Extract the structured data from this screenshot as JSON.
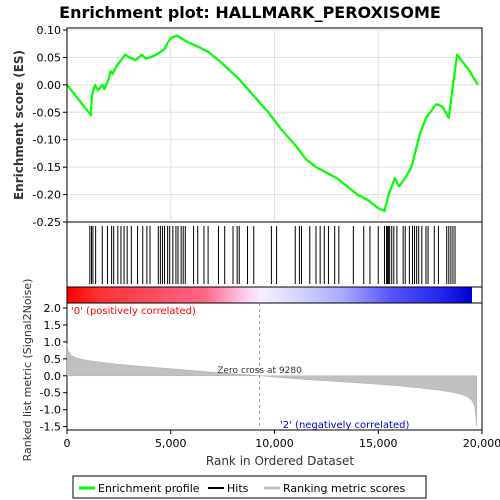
{
  "chart_data": {
    "type": "line",
    "title": "Enrichment plot: HALLMARK_PEROXISOME",
    "xlabel": "Rank in Ordered Dataset",
    "x_range": [
      0,
      20000
    ],
    "x_ticks": [
      0,
      5000,
      10000,
      15000,
      20000
    ],
    "x_tick_labels": [
      "0",
      "5,000",
      "10,000",
      "15,000",
      "20,000"
    ],
    "es_panel": {
      "ylabel": "Enrichment score (ES)",
      "ylim": [
        -0.25,
        0.1
      ],
      "y_ticks": [
        -0.25,
        -0.2,
        -0.15,
        -0.1,
        -0.05,
        0.0,
        0.05,
        0.1
      ],
      "y_tick_labels": [
        "-0.25",
        "-0.20",
        "-0.15",
        "-0.10",
        "-0.05",
        "0.00",
        "0.05",
        "0.10"
      ],
      "grid": true,
      "series": {
        "name": "Enrichment profile",
        "color": "#00ff00",
        "x": [
          0,
          1150,
          1200,
          1350,
          1500,
          1700,
          1800,
          2000,
          2100,
          2200,
          2400,
          2600,
          2800,
          3000,
          3300,
          3600,
          3800,
          4000,
          4300,
          4500,
          4700,
          4900,
          5000,
          5300,
          5500,
          5800,
          6000,
          6300,
          6800,
          7300,
          7800,
          8300,
          9000,
          9700,
          10300,
          11000,
          11500,
          12000,
          12500,
          13000,
          13500,
          14000,
          14500,
          15000,
          15300,
          15500,
          15800,
          16000,
          16300,
          16600,
          16800,
          17000,
          17300,
          17500,
          17800,
          18100,
          18400,
          18600,
          18800,
          19400,
          19800
        ],
        "y": [
          0.0,
          -0.055,
          -0.02,
          0.0,
          -0.01,
          0.0,
          -0.008,
          0.01,
          0.025,
          0.02,
          0.035,
          0.045,
          0.055,
          0.05,
          0.045,
          0.055,
          0.048,
          0.05,
          0.055,
          0.06,
          0.065,
          0.08,
          0.085,
          0.09,
          0.085,
          0.078,
          0.075,
          0.07,
          0.06,
          0.045,
          0.028,
          0.01,
          -0.02,
          -0.05,
          -0.08,
          -0.11,
          -0.135,
          -0.15,
          -0.16,
          -0.17,
          -0.185,
          -0.2,
          -0.21,
          -0.225,
          -0.23,
          -0.2,
          -0.17,
          -0.185,
          -0.17,
          -0.15,
          -0.12,
          -0.09,
          -0.06,
          -0.05,
          -0.035,
          -0.04,
          -0.06,
          0.0,
          0.055,
          0.025,
          0.0
        ]
      }
    },
    "hits": {
      "name": "Hits",
      "x": [
        1100,
        1180,
        1250,
        1380,
        1700,
        1950,
        2150,
        2250,
        2450,
        2600,
        2750,
        2900,
        3100,
        3400,
        3650,
        3850,
        4000,
        4400,
        4500,
        4600,
        4700,
        4850,
        4950,
        5100,
        5250,
        5350,
        5500,
        5600,
        5700,
        6100,
        6300,
        6600,
        6800,
        7300,
        7600,
        8000,
        8200,
        8300,
        8700,
        9000,
        9850,
        10100,
        11000,
        11200,
        11300,
        11700,
        12000,
        12200,
        12400,
        12600,
        12900,
        13100,
        13800,
        14300,
        14600,
        15000,
        15300,
        15400,
        15450,
        15500,
        15550,
        15650,
        15750,
        15900,
        16200,
        16300,
        16500,
        16650,
        16750,
        16850,
        16950,
        17100,
        17300,
        17400,
        17700,
        17900,
        18300,
        18400,
        18500,
        18600,
        18700
      ]
    },
    "ranking_bar": {
      "label_pos": "'0' (positively correlated)",
      "label_neg": "'2' (negatively correlated)",
      "color_pos": "#ff0000",
      "color_neg": "#0000ff"
    },
    "metric_panel": {
      "ylabel": "Ranked list metric (Signal2Noise)",
      "ylim": [
        -1.6,
        2.0
      ],
      "y_ticks": [
        -1.5,
        -1.0,
        -0.5,
        0.0,
        0.5,
        1.0,
        1.5,
        2.0
      ],
      "y_tick_labels": [
        "-1.5",
        "-1.0",
        "-0.5",
        "0.0",
        "0.5",
        "1.0",
        "1.5",
        "2.0"
      ],
      "zero_cross": 9280,
      "zero_cross_label": "Zero cross at 9280",
      "series": {
        "name": "Ranking metric scores",
        "color": "#c0c0c0",
        "x": [
          0,
          50,
          200,
          500,
          1000,
          2000,
          3000,
          4000,
          5000,
          6000,
          7000,
          8000,
          9280,
          10000,
          11000,
          12000,
          13000,
          14000,
          15000,
          16000,
          17000,
          18000,
          18500,
          19000,
          19300,
          19500,
          19650,
          19700,
          19750
        ],
        "y": [
          0.95,
          0.75,
          0.6,
          0.52,
          0.45,
          0.37,
          0.31,
          0.26,
          0.21,
          0.16,
          0.11,
          0.06,
          0.0,
          -0.04,
          -0.09,
          -0.13,
          -0.17,
          -0.21,
          -0.25,
          -0.3,
          -0.36,
          -0.43,
          -0.48,
          -0.55,
          -0.62,
          -0.72,
          -0.9,
          -1.2,
          -1.5
        ]
      }
    },
    "legend": {
      "placement": "bottom",
      "items": [
        {
          "label": "Enrichment profile",
          "color": "#00ff00"
        },
        {
          "label": "Hits",
          "color": "#000000"
        },
        {
          "label": "Ranking metric scores",
          "color": "#c0c0c0"
        }
      ]
    }
  }
}
